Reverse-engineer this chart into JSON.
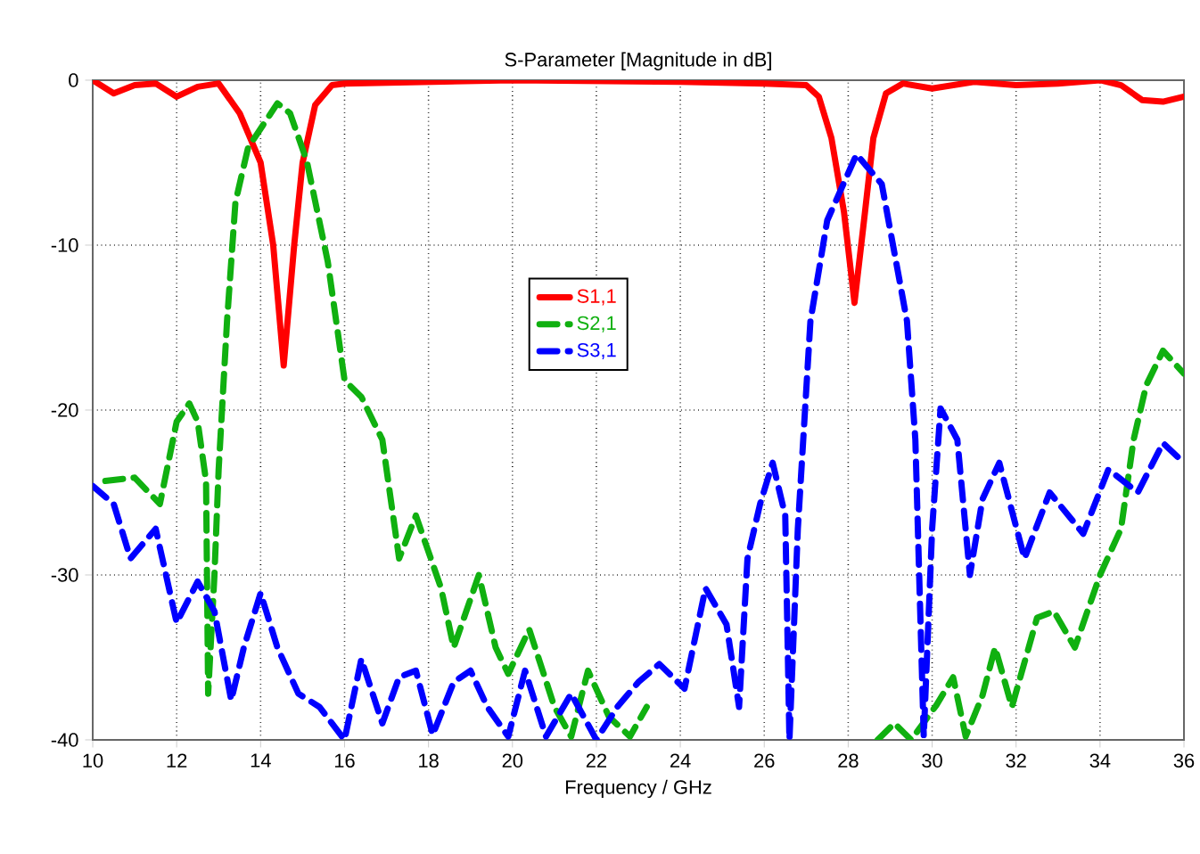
{
  "chart_data": {
    "type": "line",
    "title": "S-Parameter [Magnitude in dB]",
    "xlabel": "Frequency / GHz",
    "xlim": [
      10,
      36
    ],
    "xticks": [
      10,
      12,
      14,
      16,
      18,
      20,
      22,
      24,
      26,
      28,
      30,
      32,
      34,
      36
    ],
    "ylim": [
      -40,
      0
    ],
    "yticks": [
      -40,
      -30,
      -20,
      -10,
      0
    ],
    "grid": true,
    "legend": "center",
    "marker": "none",
    "series": [
      {
        "name": "S1,1",
        "color": "#ff0000",
        "line_style": "solid",
        "x": [
          10,
          10.5,
          11,
          11.5,
          12,
          12.5,
          13,
          13.5,
          14,
          14.3,
          14.55,
          14.8,
          15,
          15.3,
          15.7,
          16,
          20,
          24,
          26,
          27,
          27.3,
          27.6,
          27.9,
          28.15,
          28.4,
          28.6,
          28.9,
          29.3,
          30,
          31,
          32,
          33,
          34,
          34.5,
          35,
          35.5,
          36
        ],
        "values": [
          0,
          -0.8,
          -0.3,
          -0.2,
          -1,
          -0.4,
          -0.2,
          -2,
          -5,
          -10,
          -17.3,
          -10,
          -5,
          -1.5,
          -0.3,
          -0.2,
          0,
          -0.1,
          -0.2,
          -0.3,
          -1,
          -3.5,
          -8,
          -13.5,
          -8,
          -3.5,
          -0.8,
          -0.2,
          -0.5,
          -0.1,
          -0.3,
          -0.2,
          0,
          -0.3,
          -1.2,
          -1.3,
          -1
        ]
      },
      {
        "name": "S2,1",
        "color": "#10b010",
        "line_style": "dashed",
        "x": [
          10.3,
          11.0,
          11.6,
          12.0,
          12.3,
          12.5,
          12.7,
          12.75,
          12.9,
          13.0,
          13.2,
          13.4,
          13.7,
          14.4,
          14.7,
          15.1,
          15.6,
          16.0,
          16.4,
          16.9,
          17.3,
          17.7,
          18.3,
          18.6,
          19.2,
          19.6,
          19.9,
          20.4,
          21.0,
          21.4,
          21.8,
          22.3,
          22.8,
          23.2,
          25,
          28.7,
          29.1,
          29.5,
          30.1,
          30.5,
          30.8,
          31.2,
          31.5,
          31.9,
          32.5,
          32.9,
          33.4,
          34.0,
          34.5,
          34.8,
          35.1,
          35.5,
          36
        ],
        "values": [
          -24.3,
          -24.1,
          -25.7,
          -20.7,
          -19.6,
          -20.7,
          -24.3,
          -37.2,
          -30,
          -23.6,
          -14.6,
          -7.4,
          -4.1,
          -1.4,
          -2.0,
          -4.9,
          -11,
          -18.2,
          -19.2,
          -21.8,
          -29,
          -26.4,
          -30.8,
          -34.4,
          -30,
          -34.4,
          -36,
          -33.3,
          -38,
          -39.8,
          -35.8,
          -38.6,
          -39.8,
          -38,
          null,
          -40,
          -39,
          -40,
          -37.9,
          -36.2,
          -39.8,
          -37.3,
          -34.4,
          -38,
          -32.6,
          -32.2,
          -34.4,
          -30,
          -27.2,
          -21.8,
          -18.5,
          -16.4,
          -17.8
        ]
      },
      {
        "name": "S3,1",
        "color": "#0000ff",
        "line_style": "dashed",
        "x": [
          10.0,
          10.5,
          10.9,
          11.5,
          12.0,
          12.5,
          12.9,
          13.3,
          13.6,
          14.0,
          14.4,
          14.9,
          15.4,
          16.0,
          16.4,
          16.9,
          17.3,
          17.7,
          18.1,
          18.6,
          19.0,
          19.4,
          19.9,
          20.3,
          20.8,
          21.4,
          22.0,
          22.5,
          23.0,
          23.5,
          24.1,
          24.6,
          25.1,
          25.4,
          25.6,
          25.9,
          26.2,
          26.5,
          26.6,
          26.8,
          27.1,
          27.5,
          28.2,
          28.8,
          29.4,
          29.6,
          29.8,
          30.0,
          30.2,
          30.6,
          30.9,
          31.2,
          31.6,
          32.2,
          32.8,
          33.6,
          34.2,
          34.9,
          35.5,
          36
        ],
        "values": [
          -24.6,
          -25.7,
          -29,
          -27.2,
          -32.9,
          -30.4,
          -32.2,
          -37.6,
          -34.4,
          -31.1,
          -34.4,
          -37.2,
          -38,
          -40,
          -35.1,
          -39,
          -36.2,
          -35.8,
          -39.7,
          -36.5,
          -35.8,
          -38,
          -39.8,
          -35.8,
          -39.8,
          -37.2,
          -40,
          -38,
          -36.5,
          -35.4,
          -36.9,
          -30.8,
          -33,
          -38,
          -29,
          -25.7,
          -23.2,
          -26.4,
          -40,
          -27.2,
          -14.6,
          -8.5,
          -4.5,
          -6.3,
          -14.6,
          -21.8,
          -39.8,
          -27.2,
          -19.9,
          -21.8,
          -30,
          -25.4,
          -23.2,
          -29,
          -25,
          -27.5,
          -23.6,
          -25,
          -22,
          -23.2
        ]
      }
    ]
  }
}
